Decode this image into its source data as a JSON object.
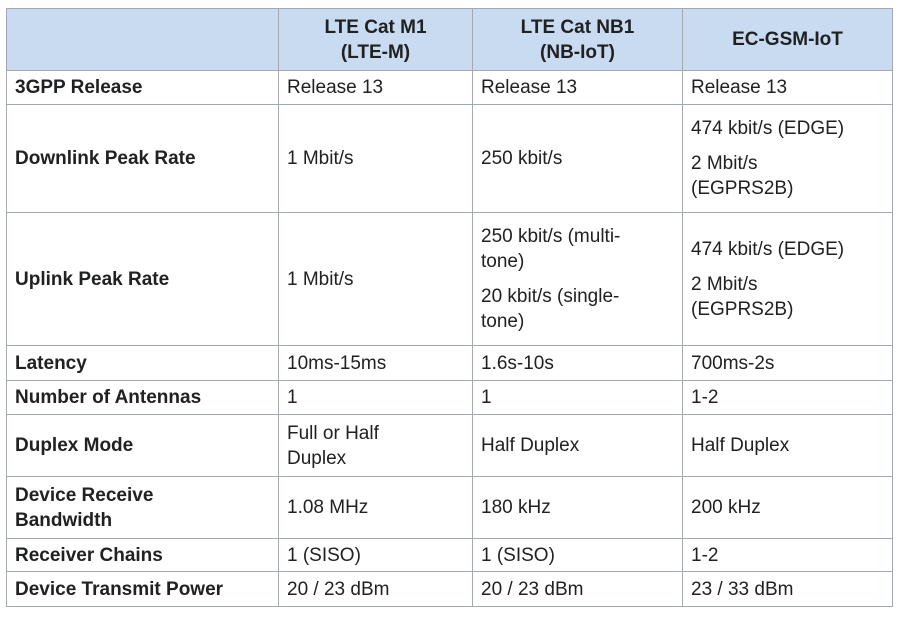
{
  "table": {
    "header": [
      [],
      [
        "LTE Cat M1",
        "(LTE-M)"
      ],
      [
        "LTE Cat NB1",
        "(NB-IoT)"
      ],
      [
        "EC-GSM-IoT"
      ]
    ],
    "rows": [
      {
        "label": [
          "3GPP Release"
        ],
        "cells": [
          [
            [
              "Release 13"
            ]
          ],
          [
            [
              "Release 13"
            ]
          ],
          [
            [
              "Release 13"
            ]
          ]
        ]
      },
      {
        "label": [
          "Downlink Peak Rate"
        ],
        "cells": [
          [
            [
              "1 Mbit/s"
            ]
          ],
          [
            [
              "250 kbit/s"
            ]
          ],
          [
            [
              "474 kbit/s (EDGE)"
            ],
            [
              "2 Mbit/s",
              "(EGPRS2B)"
            ]
          ]
        ]
      },
      {
        "label": [
          "Uplink Peak Rate"
        ],
        "cells": [
          [
            [
              "1 Mbit/s"
            ]
          ],
          [
            [
              "250 kbit/s (multi-",
              "tone)"
            ],
            [
              "20 kbit/s (single-",
              "tone)"
            ]
          ],
          [
            [
              "474 kbit/s (EDGE)"
            ],
            [
              "2 Mbit/s",
              "(EGPRS2B)"
            ]
          ]
        ]
      },
      {
        "label": [
          "Latency"
        ],
        "cells": [
          [
            [
              "10ms-15ms"
            ]
          ],
          [
            [
              "1.6s-10s"
            ]
          ],
          [
            [
              "700ms-2s"
            ]
          ]
        ]
      },
      {
        "label": [
          "Number of Antennas"
        ],
        "cells": [
          [
            [
              "1"
            ]
          ],
          [
            [
              "1"
            ]
          ],
          [
            [
              "1-2"
            ]
          ]
        ]
      },
      {
        "label": [
          "Duplex Mode"
        ],
        "cells": [
          [
            [
              "Full or Half",
              "Duplex"
            ]
          ],
          [
            [
              "Half Duplex"
            ]
          ],
          [
            [
              "Half Duplex"
            ]
          ]
        ]
      },
      {
        "label": [
          "Device Receive",
          "Bandwidth"
        ],
        "cells": [
          [
            [
              "1.08 MHz"
            ]
          ],
          [
            [
              "180 kHz"
            ]
          ],
          [
            [
              "200 kHz"
            ]
          ]
        ]
      },
      {
        "label": [
          "Receiver Chains"
        ],
        "cells": [
          [
            [
              "1 (SISO)"
            ]
          ],
          [
            [
              "1 (SISO)"
            ]
          ],
          [
            [
              "1-2"
            ]
          ]
        ]
      },
      {
        "label": [
          "Device Transmit Power"
        ],
        "cells": [
          [
            [
              "20 / 23 dBm"
            ]
          ],
          [
            [
              "20 / 23 dBm"
            ]
          ],
          [
            [
              "23 / 33 dBm"
            ]
          ]
        ]
      }
    ]
  }
}
